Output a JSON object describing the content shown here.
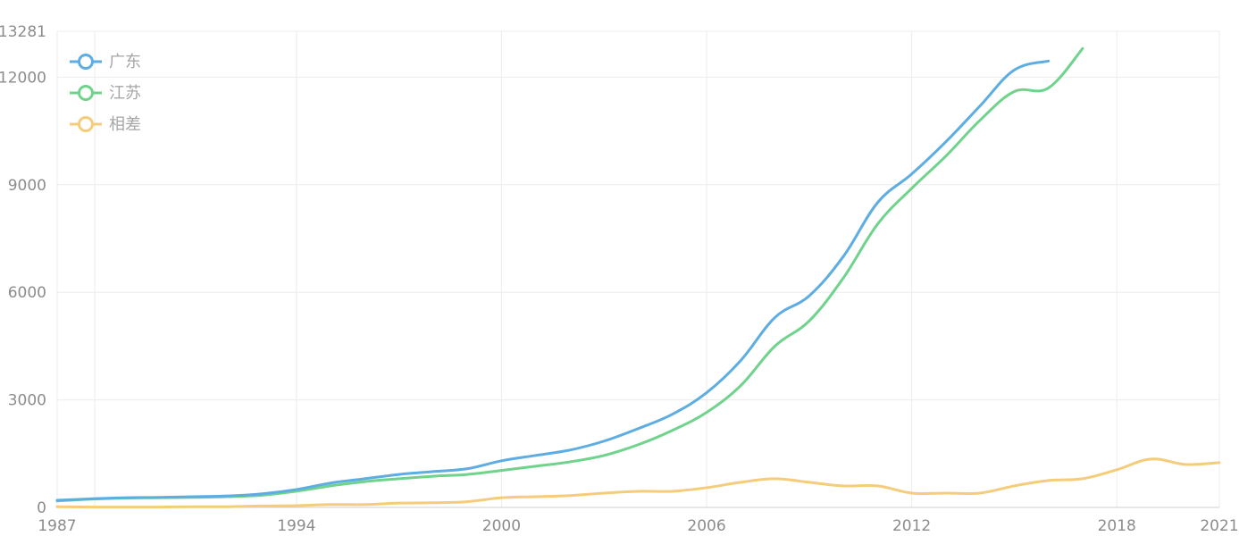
{
  "chart_data": {
    "type": "line",
    "title": "",
    "xlabel": "",
    "ylabel": "",
    "xlim": [
      1987,
      2021
    ],
    "ylim": [
      0,
      13281
    ],
    "x_ticks": [
      "1987",
      "1994",
      "2000",
      "2006",
      "2012",
      "2018",
      "2021"
    ],
    "y_ticks": [
      "0",
      "3000",
      "6000",
      "9000",
      "12000",
      "13281"
    ],
    "grid": true,
    "legend_position": "top-left",
    "series": [
      {
        "name": "广东",
        "color": "#5dade2",
        "points": [
          [
            1987,
            200
          ],
          [
            1988,
            240
          ],
          [
            1989,
            270
          ],
          [
            1990,
            280
          ],
          [
            1991,
            300
          ],
          [
            1992,
            320
          ],
          [
            1993,
            380
          ],
          [
            1994,
            500
          ],
          [
            1995,
            680
          ],
          [
            1996,
            800
          ],
          [
            1997,
            920
          ],
          [
            1998,
            1000
          ],
          [
            1999,
            1080
          ],
          [
            2000,
            1300
          ],
          [
            2001,
            1450
          ],
          [
            2002,
            1600
          ],
          [
            2003,
            1850
          ],
          [
            2004,
            2200
          ],
          [
            2005,
            2600
          ],
          [
            2006,
            3200
          ],
          [
            2007,
            4100
          ],
          [
            2008,
            5300
          ],
          [
            2009,
            5900
          ],
          [
            2010,
            7000
          ],
          [
            2011,
            8500
          ],
          [
            2012,
            9300
          ],
          [
            2013,
            10200
          ],
          [
            2014,
            11200
          ],
          [
            2015,
            12200
          ],
          [
            2016,
            12450
          ]
        ]
      },
      {
        "name": "江苏",
        "color": "#6fd38c",
        "points": [
          [
            1987,
            180
          ],
          [
            1988,
            230
          ],
          [
            1989,
            260
          ],
          [
            1990,
            270
          ],
          [
            1991,
            280
          ],
          [
            1992,
            300
          ],
          [
            1993,
            340
          ],
          [
            1994,
            450
          ],
          [
            1995,
            600
          ],
          [
            1996,
            720
          ],
          [
            1997,
            800
          ],
          [
            1998,
            870
          ],
          [
            1999,
            920
          ],
          [
            2000,
            1030
          ],
          [
            2001,
            1150
          ],
          [
            2002,
            1270
          ],
          [
            2003,
            1450
          ],
          [
            2004,
            1750
          ],
          [
            2005,
            2150
          ],
          [
            2006,
            2650
          ],
          [
            2007,
            3400
          ],
          [
            2008,
            4500
          ],
          [
            2009,
            5200
          ],
          [
            2010,
            6400
          ],
          [
            2011,
            7900
          ],
          [
            2012,
            8900
          ],
          [
            2013,
            9800
          ],
          [
            2014,
            10800
          ],
          [
            2015,
            11600
          ],
          [
            2016,
            11700
          ],
          [
            2017,
            12800
          ]
        ]
      },
      {
        "name": "相差",
        "color": "#f5cc7a",
        "points": [
          [
            1987,
            20
          ],
          [
            1988,
            10
          ],
          [
            1989,
            10
          ],
          [
            1990,
            10
          ],
          [
            1991,
            20
          ],
          [
            1992,
            20
          ],
          [
            1993,
            40
          ],
          [
            1994,
            50
          ],
          [
            1995,
            80
          ],
          [
            1996,
            80
          ],
          [
            1997,
            120
          ],
          [
            1998,
            130
          ],
          [
            1999,
            160
          ],
          [
            2000,
            270
          ],
          [
            2001,
            300
          ],
          [
            2002,
            330
          ],
          [
            2003,
            400
          ],
          [
            2004,
            450
          ],
          [
            2005,
            450
          ],
          [
            2006,
            550
          ],
          [
            2007,
            700
          ],
          [
            2008,
            800
          ],
          [
            2009,
            700
          ],
          [
            2010,
            600
          ],
          [
            2011,
            600
          ],
          [
            2012,
            400
          ],
          [
            2013,
            400
          ],
          [
            2014,
            400
          ],
          [
            2015,
            600
          ],
          [
            2016,
            750
          ],
          [
            2017,
            800
          ],
          [
            2018,
            1050
          ],
          [
            2019,
            1350
          ],
          [
            2020,
            1200
          ],
          [
            2021,
            1250
          ]
        ]
      }
    ]
  }
}
